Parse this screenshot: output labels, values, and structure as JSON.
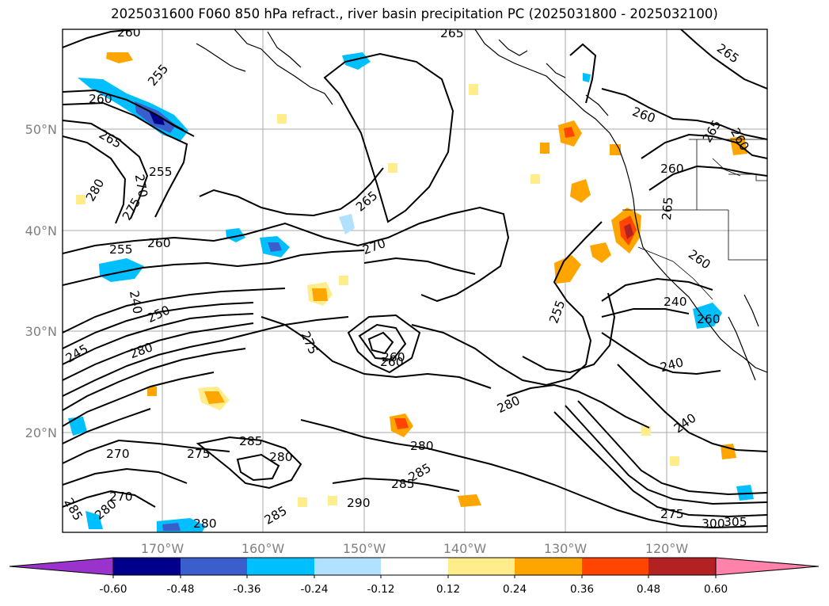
{
  "title": "2025031600 F060 850 hPa refract., river basin precipitation PC (2025031800 - 2025032100)",
  "latitude_labels": [
    "50°N",
    "40°N",
    "30°N",
    "20°N"
  ],
  "longitude_labels": [
    "170°W",
    "160°W",
    "150°W",
    "140°W",
    "130°W",
    "120°W"
  ],
  "contour_labels": [
    "260",
    "265",
    "255",
    "260",
    "265",
    "255",
    "270",
    "275",
    "280",
    "265",
    "270",
    "260",
    "255",
    "240",
    "250",
    "245",
    "280",
    "275",
    "260",
    "260",
    "280",
    "285",
    "280",
    "270",
    "275",
    "270",
    "280",
    "285",
    "285",
    "290",
    "280",
    "285",
    "280",
    "285",
    "265",
    "260",
    "265",
    "260",
    "260",
    "255",
    "240",
    "240",
    "240",
    "260",
    "265",
    "260",
    "275",
    "300",
    "305"
  ],
  "colorbar": {
    "tick_labels": [
      "-0.60",
      "-0.48",
      "-0.36",
      "-0.24",
      "-0.12",
      "0.12",
      "0.24",
      "0.36",
      "0.48",
      "0.60"
    ],
    "colors": {
      "under": "#9933cc",
      "bins": [
        "#00008b",
        "#3a5fcd",
        "#00bfff",
        "#b0e2ff",
        "#ffffff",
        "#ffec8b",
        "#ffa500",
        "#ff4500",
        "#b22222"
      ],
      "over": "#ff82ab"
    }
  }
}
